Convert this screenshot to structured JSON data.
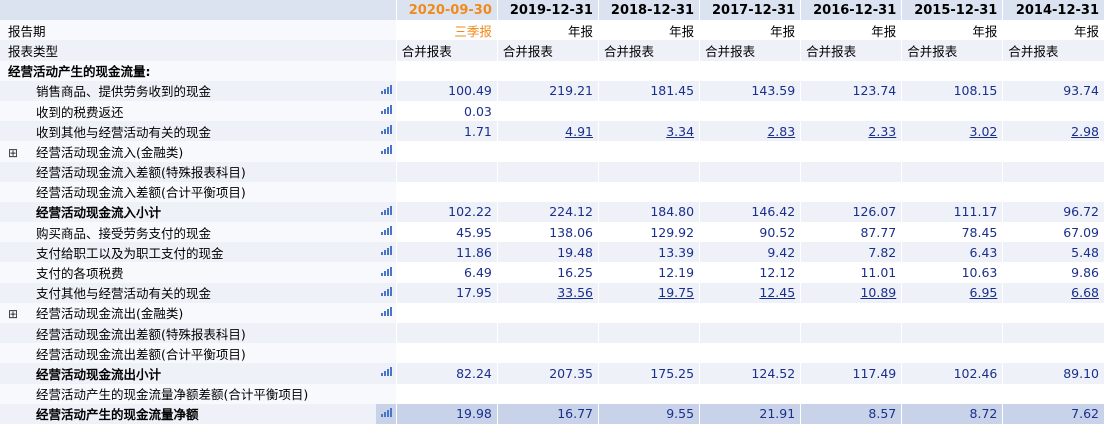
{
  "periods": [
    "2020-09-30",
    "2019-12-31",
    "2018-12-31",
    "2017-12-31",
    "2016-12-31",
    "2015-12-31",
    "2014-12-31"
  ],
  "report_period_label": "报告期",
  "report_periods": [
    "三季报",
    "年报",
    "年报",
    "年报",
    "年报",
    "年报",
    "年报"
  ],
  "report_type_label": "报表类型",
  "report_types": [
    "合并报表",
    "合并报表",
    "合并报表",
    "合并报表",
    "合并报表",
    "合并报表",
    "合并报表"
  ],
  "section_title": "经营活动产生的现金流量:",
  "rows": [
    {
      "label": "销售商品、提供劳务收到的现金",
      "icon": true,
      "bold": false,
      "expand": false,
      "values": [
        "100.49",
        "219.21",
        "181.45",
        "143.59",
        "123.74",
        "108.15",
        "93.74"
      ],
      "links": false
    },
    {
      "label": "收到的税费返还",
      "icon": true,
      "bold": false,
      "expand": false,
      "values": [
        "0.03",
        "",
        "",
        "",
        "",
        "",
        ""
      ],
      "links": false
    },
    {
      "label": "收到其他与经营活动有关的现金",
      "icon": true,
      "bold": false,
      "expand": false,
      "values": [
        "1.71",
        "4.91",
        "3.34",
        "2.83",
        "2.33",
        "3.02",
        "2.98"
      ],
      "links": true
    },
    {
      "label": "经营活动现金流入(金融类)",
      "icon": true,
      "bold": false,
      "expand": true,
      "values": [
        "",
        "",
        "",
        "",
        "",
        "",
        ""
      ],
      "links": false
    },
    {
      "label": "经营活动现金流入差额(特殊报表科目)",
      "icon": false,
      "bold": false,
      "expand": false,
      "values": [
        "",
        "",
        "",
        "",
        "",
        "",
        ""
      ],
      "links": false
    },
    {
      "label": "经营活动现金流入差额(合计平衡项目)",
      "icon": false,
      "bold": false,
      "expand": false,
      "values": [
        "",
        "",
        "",
        "",
        "",
        "",
        ""
      ],
      "links": false
    },
    {
      "label": "经营活动现金流入小计",
      "icon": true,
      "bold": true,
      "expand": false,
      "values": [
        "102.22",
        "224.12",
        "184.80",
        "146.42",
        "126.07",
        "111.17",
        "96.72"
      ],
      "links": false
    },
    {
      "label": "购买商品、接受劳务支付的现金",
      "icon": true,
      "bold": false,
      "expand": false,
      "values": [
        "45.95",
        "138.06",
        "129.92",
        "90.52",
        "87.77",
        "78.45",
        "67.09"
      ],
      "links": false
    },
    {
      "label": "支付给职工以及为职工支付的现金",
      "icon": true,
      "bold": false,
      "expand": false,
      "values": [
        "11.86",
        "19.48",
        "13.39",
        "9.42",
        "7.82",
        "6.43",
        "5.48"
      ],
      "links": false
    },
    {
      "label": "支付的各项税费",
      "icon": true,
      "bold": false,
      "expand": false,
      "values": [
        "6.49",
        "16.25",
        "12.19",
        "12.12",
        "11.01",
        "10.63",
        "9.86"
      ],
      "links": false
    },
    {
      "label": "支付其他与经营活动有关的现金",
      "icon": true,
      "bold": false,
      "expand": false,
      "values": [
        "17.95",
        "33.56",
        "19.75",
        "12.45",
        "10.89",
        "6.95",
        "6.68"
      ],
      "links": true
    },
    {
      "label": "经营活动现金流出(金融类)",
      "icon": true,
      "bold": false,
      "expand": true,
      "values": [
        "",
        "",
        "",
        "",
        "",
        "",
        ""
      ],
      "links": false
    },
    {
      "label": "经营活动现金流出差额(特殊报表科目)",
      "icon": false,
      "bold": false,
      "expand": false,
      "values": [
        "",
        "",
        "",
        "",
        "",
        "",
        ""
      ],
      "links": false
    },
    {
      "label": "经营活动现金流出差额(合计平衡项目)",
      "icon": false,
      "bold": false,
      "expand": false,
      "values": [
        "",
        "",
        "",
        "",
        "",
        "",
        ""
      ],
      "links": false
    },
    {
      "label": "经营活动现金流出小计",
      "icon": true,
      "bold": true,
      "expand": false,
      "values": [
        "82.24",
        "207.35",
        "175.25",
        "124.52",
        "117.49",
        "102.46",
        "89.10"
      ],
      "links": false
    },
    {
      "label": "经营活动产生的现金流量净额差额(合计平衡项目)",
      "icon": false,
      "bold": false,
      "expand": false,
      "values": [
        "",
        "",
        "",
        "",
        "",
        "",
        ""
      ],
      "links": false
    },
    {
      "label": "经营活动产生的现金流量净额",
      "icon": true,
      "bold": true,
      "expand": false,
      "values": [
        "19.98",
        "16.77",
        "9.55",
        "21.91",
        "8.57",
        "8.72",
        "7.62"
      ],
      "links": false,
      "total": true
    }
  ],
  "expand_symbol": "⊞",
  "icon_name": "bar-chart-icon",
  "colors": {
    "accent": "#f08a1c",
    "header_bg": "#dbe3f1",
    "link": "#1a2f8c",
    "icon": "#4a74c8",
    "total_bg": "#c8d3ea"
  }
}
